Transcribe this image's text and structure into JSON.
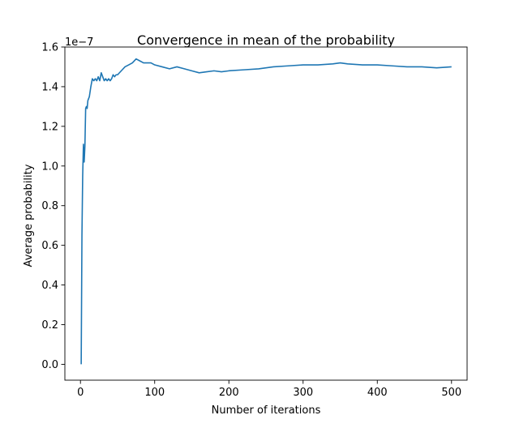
{
  "chart_data": {
    "type": "line",
    "title": "Convergence in mean of the probability",
    "xlabel": "Number of iterations",
    "ylabel": "Average probability",
    "y_offset_label": "1e−7",
    "xlim": [
      -21,
      521
    ],
    "ylim": [
      -8e-09,
      1.6e-07
    ],
    "xticks": [
      0,
      100,
      200,
      300,
      400,
      500
    ],
    "xtick_labels": [
      "0",
      "100",
      "200",
      "300",
      "400",
      "500"
    ],
    "yticks": [
      0,
      2e-08,
      4e-08,
      6e-08,
      8e-08,
      1e-07,
      1.2e-07,
      1.4e-07,
      1.6e-07
    ],
    "ytick_labels": [
      "0.0",
      "0.2",
      "0.4",
      "0.6",
      "0.8",
      "1.0",
      "1.2",
      "1.4",
      "1.6"
    ],
    "grid": false,
    "series": [
      {
        "color": "#1f77b4",
        "x": [
          1,
          2,
          3,
          4,
          5,
          6,
          7,
          8,
          9,
          10,
          12,
          14,
          16,
          18,
          20,
          22,
          24,
          26,
          28,
          30,
          32,
          34,
          36,
          38,
          40,
          42,
          44,
          46,
          48,
          50,
          55,
          60,
          65,
          70,
          75,
          80,
          85,
          90,
          95,
          100,
          110,
          120,
          130,
          140,
          150,
          160,
          170,
          180,
          190,
          200,
          220,
          240,
          260,
          280,
          300,
          320,
          340,
          350,
          360,
          380,
          400,
          420,
          440,
          460,
          480,
          500
        ],
        "y": [
          0.0,
          6.5e-08,
          9.5e-08,
          1.11e-07,
          1.02e-07,
          1.1e-07,
          1.29e-07,
          1.3e-07,
          1.29e-07,
          1.33e-07,
          1.35e-07,
          1.4e-07,
          1.44e-07,
          1.43e-07,
          1.44e-07,
          1.43e-07,
          1.45e-07,
          1.43e-07,
          1.47e-07,
          1.45e-07,
          1.43e-07,
          1.44e-07,
          1.43e-07,
          1.44e-07,
          1.43e-07,
          1.44e-07,
          1.46e-07,
          1.45e-07,
          1.46e-07,
          1.46e-07,
          1.48e-07,
          1.5e-07,
          1.51e-07,
          1.52e-07,
          1.54e-07,
          1.53e-07,
          1.52e-07,
          1.52e-07,
          1.52e-07,
          1.51e-07,
          1.5e-07,
          1.49e-07,
          1.5e-07,
          1.49e-07,
          1.48e-07,
          1.47e-07,
          1.475e-07,
          1.48e-07,
          1.475e-07,
          1.48e-07,
          1.485e-07,
          1.49e-07,
          1.5e-07,
          1.505e-07,
          1.51e-07,
          1.51e-07,
          1.515e-07,
          1.52e-07,
          1.515e-07,
          1.51e-07,
          1.51e-07,
          1.505e-07,
          1.5e-07,
          1.5e-07,
          1.495e-07,
          1.5e-07
        ]
      }
    ]
  }
}
